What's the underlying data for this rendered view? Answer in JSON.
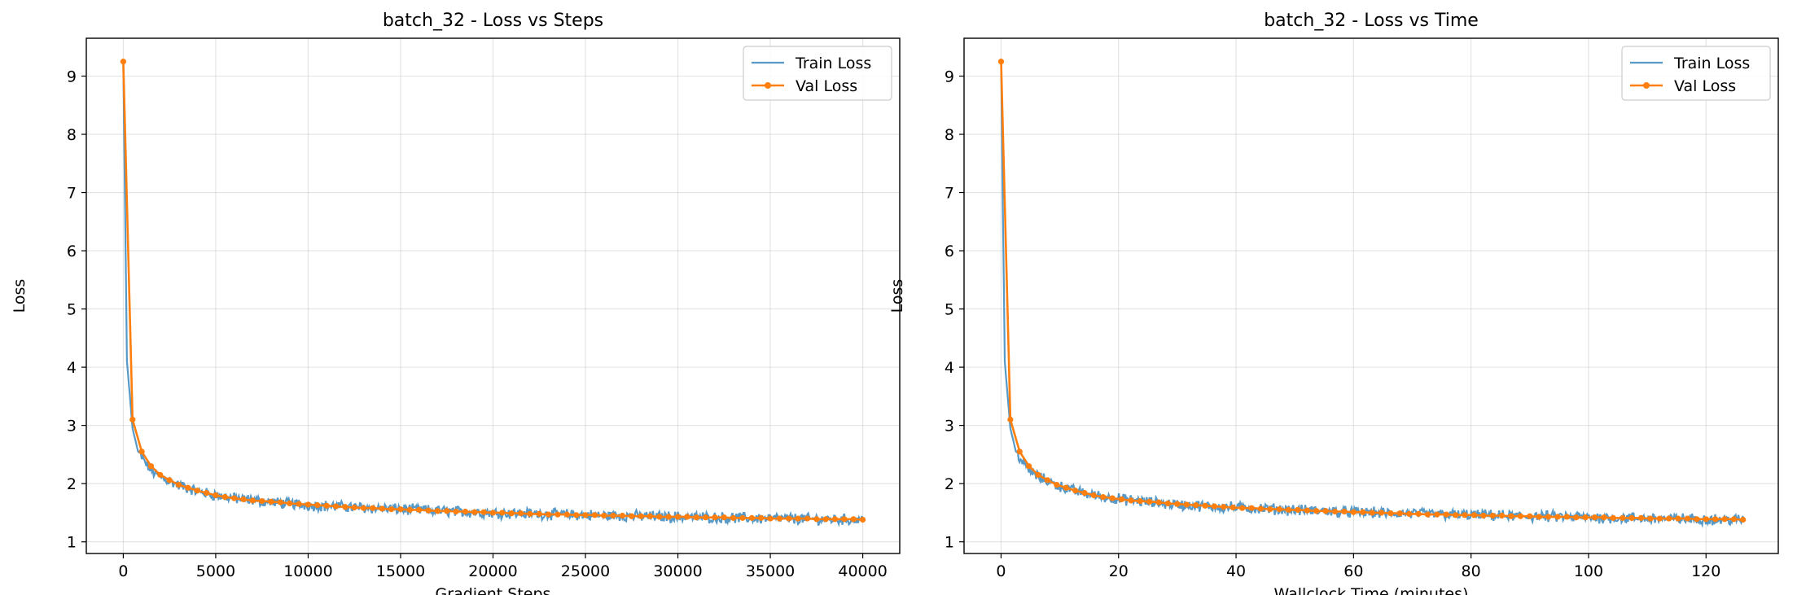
{
  "colors": {
    "train": "#1f77b4",
    "val": "#ff7f0e",
    "grid": "#b0b0b0",
    "frame": "#000000",
    "legend_border": "#cccccc"
  },
  "chart_data": [
    {
      "type": "line",
      "title": "batch_32 - Loss vs Steps",
      "xlabel": "Gradient Steps",
      "ylabel": "Loss",
      "xlim": [
        -2000,
        42000
      ],
      "ylim": [
        0.8,
        9.65
      ],
      "xticks": [
        0,
        5000,
        10000,
        15000,
        20000,
        25000,
        30000,
        35000,
        40000
      ],
      "xtick_labels": [
        "0",
        "5000",
        "10000",
        "15000",
        "20000",
        "25000",
        "30000",
        "35000",
        "40000"
      ],
      "yticks": [
        1,
        2,
        3,
        4,
        5,
        6,
        7,
        8,
        9
      ],
      "ytick_labels": [
        "1",
        "2",
        "3",
        "4",
        "5",
        "6",
        "7",
        "8",
        "9"
      ],
      "grid": true,
      "legend_position": "upper right",
      "series": [
        {
          "name": "Train Loss",
          "style": "line",
          "note": "noisy training curve, approx. +/-0.08 around the trend",
          "x": [
            0,
            200,
            500,
            800,
            1200,
            1600,
            2000,
            3000,
            4000,
            5000,
            6000,
            8000,
            10000,
            12000,
            15000,
            18000,
            20000,
            25000,
            30000,
            35000,
            40000
          ],
          "y": [
            9.25,
            4.1,
            2.95,
            2.55,
            2.35,
            2.2,
            2.12,
            1.97,
            1.87,
            1.8,
            1.75,
            1.68,
            1.63,
            1.6,
            1.56,
            1.52,
            1.5,
            1.46,
            1.43,
            1.4,
            1.38
          ]
        },
        {
          "name": "Val Loss",
          "style": "line+markers",
          "x": [
            0,
            500,
            1000,
            1500,
            2000,
            2500,
            3000,
            3500,
            4000,
            4500,
            5000,
            5500,
            6000,
            6500,
            7000,
            7500,
            8000,
            8500,
            9000,
            9500,
            10000,
            10500,
            11000,
            11500,
            12000,
            12500,
            13000,
            13500,
            14000,
            14500,
            15000,
            15500,
            16000,
            16500,
            17000,
            17500,
            18000,
            18500,
            19000,
            19500,
            20000,
            20500,
            21000,
            21500,
            22000,
            22500,
            23000,
            23500,
            24000,
            24500,
            25000,
            25500,
            26000,
            26500,
            27000,
            27500,
            28000,
            28500,
            29000,
            29500,
            30000,
            30500,
            31000,
            31500,
            32000,
            32500,
            33000,
            33500,
            34000,
            34500,
            35000,
            35500,
            36000,
            36500,
            37000,
            37500,
            38000,
            38500,
            39000,
            39500,
            40000
          ],
          "y": [
            9.25,
            3.1,
            2.55,
            2.3,
            2.15,
            2.06,
            1.98,
            1.93,
            1.88,
            1.84,
            1.8,
            1.77,
            1.75,
            1.73,
            1.71,
            1.7,
            1.69,
            1.68,
            1.66,
            1.65,
            1.64,
            1.63,
            1.62,
            1.61,
            1.6,
            1.59,
            1.58,
            1.58,
            1.57,
            1.56,
            1.56,
            1.55,
            1.55,
            1.54,
            1.53,
            1.53,
            1.52,
            1.52,
            1.51,
            1.51,
            1.5,
            1.5,
            1.49,
            1.49,
            1.48,
            1.48,
            1.47,
            1.47,
            1.47,
            1.46,
            1.46,
            1.46,
            1.45,
            1.45,
            1.45,
            1.44,
            1.44,
            1.44,
            1.43,
            1.43,
            1.43,
            1.43,
            1.42,
            1.42,
            1.42,
            1.42,
            1.41,
            1.41,
            1.41,
            1.41,
            1.4,
            1.4,
            1.4,
            1.4,
            1.4,
            1.39,
            1.39,
            1.39,
            1.39,
            1.39,
            1.38
          ]
        }
      ]
    },
    {
      "type": "line",
      "title": "batch_32 - Loss vs Time",
      "xlabel": "Wallclock Time (minutes)",
      "ylabel": "Loss",
      "xlim": [
        -6.3,
        132.3
      ],
      "ylim": [
        0.8,
        9.65
      ],
      "xticks": [
        0,
        20,
        40,
        60,
        80,
        100,
        120
      ],
      "xtick_labels": [
        "0",
        "20",
        "40",
        "60",
        "80",
        "100",
        "120"
      ],
      "yticks": [
        1,
        2,
        3,
        4,
        5,
        6,
        7,
        8,
        9
      ],
      "ytick_labels": [
        "1",
        "2",
        "3",
        "4",
        "5",
        "6",
        "7",
        "8",
        "9"
      ],
      "grid": true,
      "legend_position": "upper right",
      "series": [
        {
          "name": "Train Loss",
          "style": "line",
          "note": "noisy training curve, approx. +/-0.08 around the trend",
          "x": [
            0,
            0.63,
            1.58,
            2.53,
            3.79,
            5.05,
            6.32,
            9.47,
            12.63,
            15.79,
            18.95,
            25.26,
            31.58,
            37.89,
            47.37,
            56.84,
            63.16,
            78.95,
            94.74,
            110.53,
            126.3
          ],
          "y": [
            9.25,
            4.1,
            2.95,
            2.55,
            2.35,
            2.2,
            2.12,
            1.97,
            1.87,
            1.8,
            1.75,
            1.68,
            1.63,
            1.6,
            1.56,
            1.52,
            1.5,
            1.46,
            1.43,
            1.4,
            1.38
          ]
        },
        {
          "name": "Val Loss",
          "style": "line+markers",
          "x": [
            0,
            1.58,
            3.16,
            4.74,
            6.32,
            7.89,
            9.47,
            11.05,
            12.63,
            14.21,
            15.79,
            17.37,
            18.95,
            20.53,
            22.11,
            23.68,
            25.26,
            26.84,
            28.42,
            30.0,
            31.58,
            33.16,
            34.74,
            36.32,
            37.89,
            39.47,
            41.05,
            42.63,
            44.21,
            45.79,
            47.37,
            48.95,
            50.53,
            52.11,
            53.68,
            55.26,
            56.84,
            58.42,
            60.0,
            61.58,
            63.16,
            64.74,
            66.32,
            67.89,
            69.47,
            71.05,
            72.63,
            74.21,
            75.79,
            77.37,
            78.95,
            80.53,
            82.11,
            83.68,
            85.26,
            86.84,
            88.42,
            90.0,
            91.58,
            93.16,
            94.74,
            96.32,
            97.89,
            99.47,
            101.05,
            102.63,
            104.21,
            105.79,
            107.37,
            108.95,
            110.53,
            112.11,
            113.68,
            115.26,
            116.84,
            118.42,
            120.0,
            121.58,
            123.16,
            124.74,
            126.3
          ],
          "y": [
            9.25,
            3.1,
            2.55,
            2.3,
            2.15,
            2.06,
            1.98,
            1.93,
            1.88,
            1.84,
            1.8,
            1.77,
            1.75,
            1.73,
            1.71,
            1.7,
            1.69,
            1.68,
            1.66,
            1.65,
            1.64,
            1.63,
            1.62,
            1.61,
            1.6,
            1.59,
            1.58,
            1.58,
            1.57,
            1.56,
            1.56,
            1.55,
            1.55,
            1.54,
            1.53,
            1.53,
            1.52,
            1.52,
            1.51,
            1.51,
            1.5,
            1.5,
            1.49,
            1.49,
            1.48,
            1.48,
            1.47,
            1.47,
            1.47,
            1.46,
            1.46,
            1.46,
            1.45,
            1.45,
            1.45,
            1.44,
            1.44,
            1.44,
            1.43,
            1.43,
            1.43,
            1.43,
            1.42,
            1.42,
            1.42,
            1.42,
            1.41,
            1.41,
            1.41,
            1.41,
            1.4,
            1.4,
            1.4,
            1.4,
            1.4,
            1.39,
            1.39,
            1.39,
            1.39,
            1.39,
            1.38
          ]
        }
      ]
    }
  ]
}
